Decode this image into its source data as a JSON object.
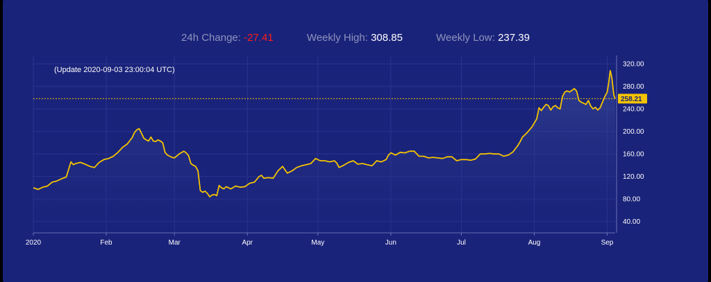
{
  "stats": {
    "change_label": "24h Change:",
    "change_value": "-27.41",
    "high_label": "Weekly High:",
    "high_value": "308.85",
    "low_label": "Weekly Low:",
    "low_value": "237.39"
  },
  "update_text": "(Update 2020-09-03 23:00:04 UTC)",
  "colors": {
    "background": "#1a237a",
    "line": "#f5c400",
    "negative": "#ff1a1a",
    "price_tag": "#f5c400"
  },
  "chart_data": {
    "type": "area",
    "title": "",
    "xlabel": "",
    "ylabel": "",
    "ylim": [
      20,
      335
    ],
    "y_ticks": [
      "40.00",
      "80.00",
      "120.00",
      "160.00",
      "200.00",
      "240.00",
      "280.00",
      "320.00"
    ],
    "x_ticks": [
      {
        "label": "2020",
        "day": 0
      },
      {
        "label": "Feb",
        "day": 31
      },
      {
        "label": "Mar",
        "day": 60
      },
      {
        "label": "Apr",
        "day": 91
      },
      {
        "label": "May",
        "day": 121
      },
      {
        "label": "Jun",
        "day": 152
      },
      {
        "label": "Jul",
        "day": 182
      },
      {
        "label": "Aug",
        "day": 213
      },
      {
        "label": "Sep",
        "day": 244
      }
    ],
    "current_price": "258.21",
    "current_value": 258.21,
    "grid": true,
    "series": [
      {
        "points": [
          [
            0,
            100
          ],
          [
            2,
            97
          ],
          [
            4,
            101
          ],
          [
            6,
            103
          ],
          [
            8,
            110
          ],
          [
            10,
            112
          ],
          [
            12,
            116
          ],
          [
            14,
            119
          ],
          [
            16,
            146
          ],
          [
            17,
            141
          ],
          [
            18,
            143
          ],
          [
            20,
            145
          ],
          [
            22,
            142
          ],
          [
            24,
            138
          ],
          [
            26,
            136
          ],
          [
            28,
            145
          ],
          [
            30,
            150
          ],
          [
            32,
            152
          ],
          [
            34,
            156
          ],
          [
            36,
            163
          ],
          [
            38,
            172
          ],
          [
            40,
            178
          ],
          [
            42,
            189
          ],
          [
            43,
            198
          ],
          [
            44,
            203
          ],
          [
            45,
            205
          ],
          [
            46,
            197
          ],
          [
            47,
            188
          ],
          [
            48,
            185
          ],
          [
            49,
            183
          ],
          [
            50,
            190
          ],
          [
            51,
            183
          ],
          [
            52,
            182
          ],
          [
            53,
            185
          ],
          [
            54,
            183
          ],
          [
            55,
            180
          ],
          [
            56,
            163
          ],
          [
            57,
            158
          ],
          [
            58,
            156
          ],
          [
            59,
            154
          ],
          [
            60,
            153
          ],
          [
            62,
            160
          ],
          [
            64,
            165
          ],
          [
            65,
            162
          ],
          [
            66,
            157
          ],
          [
            67,
            143
          ],
          [
            68,
            140
          ],
          [
            69,
            138
          ],
          [
            70,
            130
          ],
          [
            71,
            95
          ],
          [
            72,
            92
          ],
          [
            73,
            94
          ],
          [
            74,
            90
          ],
          [
            75,
            84
          ],
          [
            76,
            87
          ],
          [
            77,
            88
          ],
          [
            78,
            86
          ],
          [
            79,
            104
          ],
          [
            80,
            100
          ],
          [
            81,
            98
          ],
          [
            82,
            102
          ],
          [
            84,
            98
          ],
          [
            86,
            103
          ],
          [
            88,
            101
          ],
          [
            90,
            102
          ],
          [
            91,
            105
          ],
          [
            92,
            108
          ],
          [
            94,
            110
          ],
          [
            96,
            120
          ],
          [
            97,
            122
          ],
          [
            98,
            117
          ],
          [
            100,
            118
          ],
          [
            102,
            117
          ],
          [
            104,
            130
          ],
          [
            106,
            138
          ],
          [
            108,
            126
          ],
          [
            110,
            130
          ],
          [
            112,
            136
          ],
          [
            114,
            139
          ],
          [
            116,
            141
          ],
          [
            118,
            143
          ],
          [
            120,
            152
          ],
          [
            122,
            148
          ],
          [
            124,
            148
          ],
          [
            126,
            146
          ],
          [
            128,
            148
          ],
          [
            129,
            144
          ],
          [
            130,
            136
          ],
          [
            132,
            140
          ],
          [
            134,
            145
          ],
          [
            136,
            148
          ],
          [
            138,
            142
          ],
          [
            140,
            143
          ],
          [
            142,
            141
          ],
          [
            144,
            139
          ],
          [
            146,
            148
          ],
          [
            148,
            146
          ],
          [
            150,
            150
          ],
          [
            151,
            158
          ],
          [
            152,
            162
          ],
          [
            154,
            158
          ],
          [
            156,
            163
          ],
          [
            158,
            162
          ],
          [
            160,
            165
          ],
          [
            162,
            165
          ],
          [
            164,
            156
          ],
          [
            166,
            156
          ],
          [
            168,
            153
          ],
          [
            170,
            154
          ],
          [
            172,
            153
          ],
          [
            174,
            152
          ],
          [
            176,
            155
          ],
          [
            178,
            155
          ],
          [
            180,
            148
          ],
          [
            182,
            150
          ],
          [
            184,
            150
          ],
          [
            186,
            149
          ],
          [
            188,
            151
          ],
          [
            190,
            160
          ],
          [
            192,
            160
          ],
          [
            194,
            161
          ],
          [
            196,
            160
          ],
          [
            198,
            160
          ],
          [
            200,
            156
          ],
          [
            202,
            158
          ],
          [
            204,
            164
          ],
          [
            206,
            175
          ],
          [
            207,
            182
          ],
          [
            208,
            190
          ],
          [
            210,
            198
          ],
          [
            212,
            208
          ],
          [
            214,
            222
          ],
          [
            215,
            242
          ],
          [
            216,
            237
          ],
          [
            217,
            243
          ],
          [
            218,
            248
          ],
          [
            219,
            246
          ],
          [
            220,
            238
          ],
          [
            221,
            244
          ],
          [
            222,
            246
          ],
          [
            223,
            242
          ],
          [
            224,
            240
          ],
          [
            225,
            262
          ],
          [
            226,
            270
          ],
          [
            227,
            272
          ],
          [
            228,
            270
          ],
          [
            229,
            273
          ],
          [
            230,
            276
          ],
          [
            231,
            272
          ],
          [
            232,
            255
          ],
          [
            233,
            252
          ],
          [
            234,
            250
          ],
          [
            235,
            248
          ],
          [
            236,
            255
          ],
          [
            237,
            245
          ],
          [
            238,
            240
          ],
          [
            239,
            243
          ],
          [
            240,
            238
          ],
          [
            241,
            242
          ],
          [
            242,
            252
          ],
          [
            243,
            262
          ],
          [
            244,
            270
          ],
          [
            244.6,
            285
          ],
          [
            245.3,
            308
          ],
          [
            246,
            295
          ],
          [
            246.8,
            265
          ],
          [
            247.4,
            258.21
          ]
        ]
      }
    ]
  }
}
